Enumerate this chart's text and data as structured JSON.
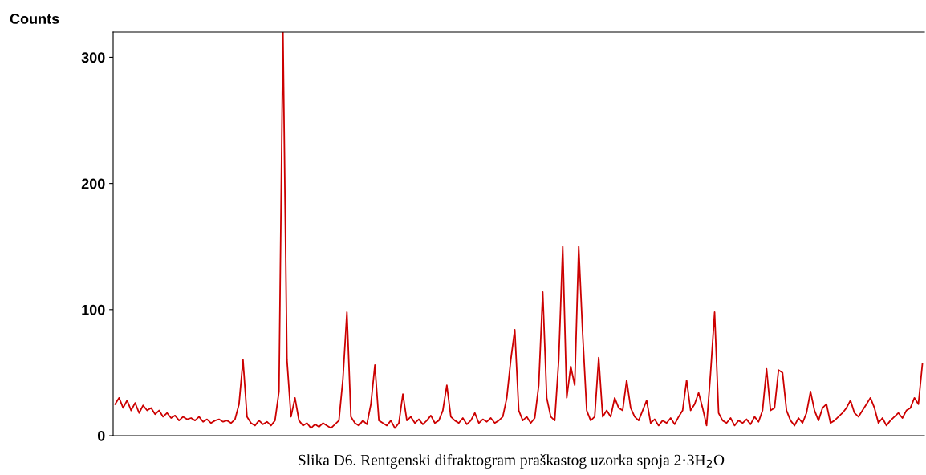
{
  "chart_data": {
    "type": "line",
    "ylabel": "Counts",
    "categories": [
      null,
      null,
      null,
      null,
      null,
      null,
      null,
      null,
      null,
      null,
      null,
      null,
      null,
      null,
      null,
      null,
      null,
      null,
      null,
      null,
      null,
      null,
      null,
      null,
      null,
      null,
      null,
      null,
      null,
      null,
      null,
      null,
      null,
      null,
      null,
      null,
      null,
      null,
      null,
      null,
      null,
      null,
      null,
      null,
      null,
      null,
      null,
      null,
      null,
      null,
      null,
      null,
      null,
      null,
      null,
      null,
      null,
      null,
      null,
      null,
      null,
      null,
      null,
      null,
      null,
      null,
      null,
      null,
      null,
      null,
      null,
      null,
      null,
      null,
      null,
      null,
      null,
      null,
      null,
      null,
      null,
      null,
      null,
      null,
      null,
      null,
      null,
      null,
      null,
      null,
      null,
      null,
      null,
      null,
      null,
      null,
      null,
      null,
      null,
      null,
      null,
      null,
      null,
      null,
      null,
      null,
      null,
      null,
      null,
      null,
      null,
      null,
      null,
      null,
      null,
      null,
      null,
      null,
      null,
      null,
      null,
      null,
      null,
      null,
      null,
      null,
      null,
      null,
      null,
      null,
      null,
      null,
      null,
      null,
      null,
      null,
      null,
      null,
      null,
      null,
      null,
      null,
      null,
      null,
      null,
      null,
      null,
      null,
      null,
      null,
      null,
      null,
      null,
      null,
      null,
      null,
      null,
      null,
      null,
      null,
      null,
      null,
      null,
      null,
      null,
      null,
      null,
      null,
      null,
      null,
      null,
      null,
      null,
      null,
      null,
      null,
      null,
      null,
      null,
      null,
      null,
      null,
      null,
      null,
      null,
      null,
      null,
      null,
      null,
      null,
      null,
      null,
      null,
      null,
      null,
      null,
      null,
      null,
      null,
      null,
      null,
      null,
      null
    ],
    "series": [
      {
        "color": "#cc0000",
        "values": [
          25,
          30,
          22,
          28,
          20,
          26,
          18,
          24,
          20,
          22,
          17,
          20,
          15,
          18,
          14,
          16,
          12,
          15,
          13,
          14,
          12,
          15,
          11,
          13,
          10,
          12,
          13,
          11,
          12,
          10,
          13,
          25,
          60,
          15,
          10,
          8,
          12,
          9,
          11,
          8,
          12,
          35,
          320,
          60,
          15,
          30,
          12,
          8,
          10,
          6,
          9,
          7,
          10,
          8,
          6,
          9,
          12,
          45,
          98,
          15,
          10,
          8,
          12,
          9,
          25,
          56,
          12,
          10,
          8,
          12,
          6,
          10,
          33,
          12,
          15,
          10,
          13,
          9,
          12,
          16,
          10,
          12,
          20,
          40,
          15,
          12,
          10,
          14,
          9,
          12,
          18,
          10,
          13,
          11,
          14,
          10,
          12,
          15,
          30,
          60,
          84,
          20,
          12,
          15,
          10,
          14,
          40,
          114,
          30,
          15,
          12,
          60,
          150,
          30,
          55,
          40,
          150,
          80,
          20,
          12,
          15,
          62,
          15,
          20,
          15,
          30,
          22,
          20,
          44,
          22,
          15,
          12,
          20,
          28,
          10,
          13,
          8,
          12,
          10,
          14,
          9,
          15,
          20,
          44,
          20,
          25,
          34,
          22,
          8,
          50,
          98,
          18,
          12,
          10,
          14,
          8,
          12,
          10,
          13,
          9,
          15,
          11,
          20,
          53,
          20,
          22,
          52,
          50,
          20,
          12,
          8,
          14,
          10,
          18,
          35,
          20,
          12,
          22,
          25,
          10,
          12,
          15,
          18,
          22,
          28,
          18,
          15,
          20,
          25,
          30,
          22,
          10,
          14,
          8,
          12,
          15,
          18,
          14,
          20,
          22,
          30,
          25,
          57
        ]
      }
    ],
    "ylim": [
      0,
      320
    ],
    "yticks": [
      0,
      100,
      200,
      300
    ],
    "grid": false,
    "legend": false,
    "marker": "none",
    "line_style": "solid",
    "annotations": [
      "Slika D6. Rentgenski difraktogram praškastog uzorka spoja 2·3H$_{2}$O"
    ]
  }
}
